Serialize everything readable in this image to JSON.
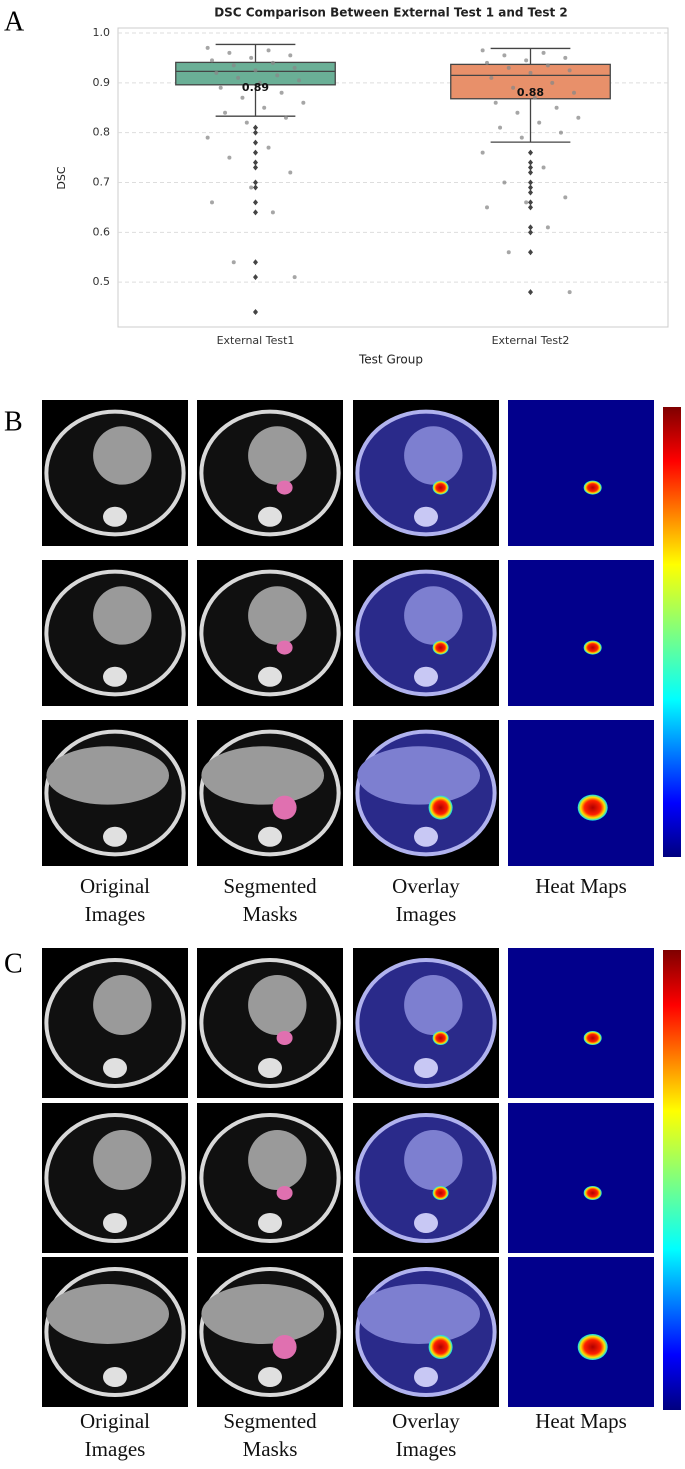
{
  "panel_labels": [
    "A",
    "B",
    "C"
  ],
  "chart_data": {
    "type": "box",
    "title": "DSC Comparison Between External Test 1 and Test 2",
    "xlabel": "Test Group",
    "ylabel": "DSC",
    "categories": [
      "External Test1",
      "External Test2"
    ],
    "series": [
      {
        "color": "#6aaf96",
        "whisker_low": 0.833,
        "q1": 0.896,
        "median": 0.923,
        "q3": 0.941,
        "whisker_high": 0.977,
        "mean": 0.89,
        "outliers": [
          0.81,
          0.8,
          0.78,
          0.76,
          0.74,
          0.73,
          0.7,
          0.69,
          0.66,
          0.64,
          0.54,
          0.51,
          0.44
        ],
        "points": [
          0.97,
          0.965,
          0.96,
          0.955,
          0.95,
          0.945,
          0.94,
          0.935,
          0.93,
          0.925,
          0.92,
          0.915,
          0.91,
          0.905,
          0.9,
          0.89,
          0.88,
          0.87,
          0.86,
          0.85,
          0.84,
          0.83,
          0.82,
          0.79,
          0.77,
          0.75,
          0.72,
          0.69,
          0.66,
          0.64,
          0.54,
          0.51,
          0.44
        ]
      },
      {
        "color": "#e8906a",
        "whisker_low": 0.781,
        "q1": 0.868,
        "median": 0.915,
        "q3": 0.937,
        "whisker_high": 0.969,
        "mean": 0.88,
        "outliers": [
          0.76,
          0.74,
          0.73,
          0.72,
          0.7,
          0.69,
          0.68,
          0.66,
          0.65,
          0.61,
          0.6,
          0.56,
          0.48
        ],
        "points": [
          0.965,
          0.96,
          0.955,
          0.95,
          0.945,
          0.94,
          0.935,
          0.93,
          0.925,
          0.92,
          0.91,
          0.9,
          0.89,
          0.88,
          0.87,
          0.86,
          0.85,
          0.84,
          0.83,
          0.82,
          0.81,
          0.8,
          0.79,
          0.76,
          0.73,
          0.7,
          0.67,
          0.66,
          0.65,
          0.61,
          0.56,
          0.48
        ]
      }
    ],
    "ylim": [
      0.41,
      1.01
    ],
    "yticks": [
      0.5,
      0.6,
      0.7,
      0.8,
      0.9,
      {
        "value": 1,
        "label": "1.0"
      }
    ],
    "grid": true
  },
  "panel_b": {
    "captions": [
      [
        "Original",
        "Images"
      ],
      [
        "Segmented",
        "Masks"
      ],
      [
        "Overlay",
        "Images"
      ],
      [
        "Heat Maps"
      ]
    ]
  },
  "panel_c": {
    "captions": [
      [
        "Original",
        "Images"
      ],
      [
        "Segmented",
        "Masks"
      ],
      [
        "Overlay",
        "Images"
      ],
      [
        "Heat Maps"
      ]
    ]
  }
}
